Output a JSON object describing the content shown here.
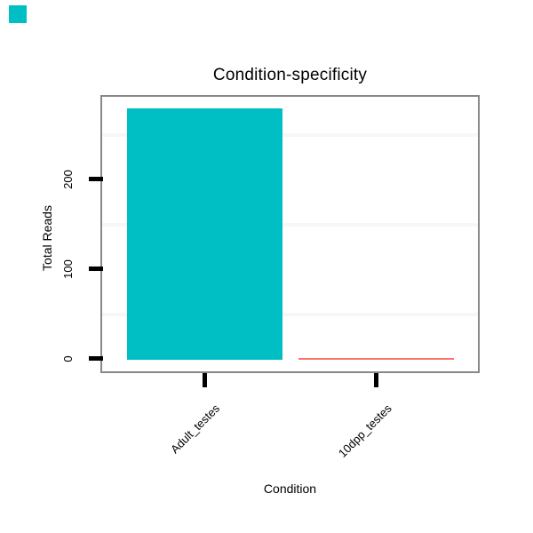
{
  "corner_swatch": {
    "color": "#00BFC4"
  },
  "chart_data": {
    "type": "bar",
    "title": "Condition-specificity",
    "xlabel": "Condition",
    "ylabel": "Total Reads",
    "categories": [
      "Adult_testes",
      "10dpp_testes"
    ],
    "values": [
      280,
      2
    ],
    "bar_colors": [
      "#00BFC4",
      "#F8766D"
    ],
    "ylim": [
      0,
      300
    ],
    "yticks": [
      "0",
      "100",
      "200"
    ],
    "ytick_values": [
      0,
      100,
      200
    ],
    "minor_gridline_values": [
      50,
      150,
      250
    ],
    "grid": "faint minor horizontal gridlines only",
    "legend_position": "none",
    "panel_border_color": "#888888",
    "gridline_color": "#F7F7F7",
    "tick_color": "#000000"
  }
}
